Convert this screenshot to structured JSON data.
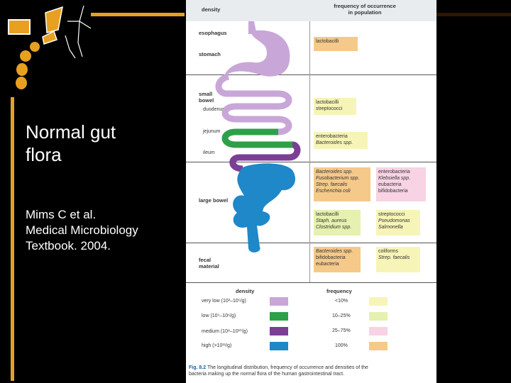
{
  "slide": {
    "title_line1": "Normal gut",
    "title_line2": "flora",
    "citation_line1": "Mims C et al.",
    "citation_line2": "Medical Microbiology",
    "citation_line3": "Textbook. 2004.",
    "accent_color": "#e8a020"
  },
  "figure": {
    "header_density": "density",
    "header_frequency_line1": "frequency of occurrence",
    "header_frequency_line2": "in population",
    "regions": {
      "esophagus": "esophagus",
      "stomach": "stomach",
      "small_bowel_line1": "small",
      "small_bowel_line2": "bowel",
      "duodenum": "duodenum",
      "jejunum": "jejunum",
      "ileum": "ileum",
      "large_bowel": "large bowel",
      "fecal_line1": "fecal",
      "fecal_line2": "material"
    },
    "boxes": {
      "stomach": [
        "lactobacilli"
      ],
      "duodenum": [
        "lactobacilli",
        "streptococci"
      ],
      "ileum": [
        "enterobacteria",
        "Bacteroides spp."
      ],
      "large_a": [
        "Bacteroides spp.",
        "Fusobacterium spp.",
        "Strep. faecalis",
        "Escherichia coli"
      ],
      "large_b": [
        "enterobacteria",
        "Klebsiella spp.",
        "eubacteria",
        "bifidobacteria"
      ],
      "large_c": [
        "lactobacilli",
        "Staph. aureus",
        "Clostridium spp."
      ],
      "large_d": [
        "streptococci",
        "Pseudomonas",
        "Salmonella"
      ],
      "fecal_a": [
        "Bacteroides spp.",
        "bifidobacteria",
        "eubacteria"
      ],
      "fecal_b": [
        "coliforms",
        "Strep. faecalis"
      ]
    },
    "legend": {
      "density_title": "density",
      "frequency_title": "frequency",
      "density_items": [
        {
          "label": "very low (10³–10⁵/g)",
          "color": "#c9a6d8"
        },
        {
          "label": "low (10⁵–10⁶/g)",
          "color": "#2ea04a"
        },
        {
          "label": "medium (10⁸–10¹⁰/g)",
          "color": "#7b3f95"
        },
        {
          "label": "high (>10¹¹/g)",
          "color": "#1e88c8"
        }
      ],
      "frequency_items": [
        {
          "label": "<10%",
          "color": "#f7f4b8"
        },
        {
          "label": "10–25%",
          "color": "#e6f0b0"
        },
        {
          "label": "25–75%",
          "color": "#f7d3e3"
        },
        {
          "label": "100%",
          "color": "#f5c98a"
        }
      ]
    },
    "caption_label": "Fig. 8.2",
    "caption_text_line1": "The longitudinal distribution, frequency of occurrence and densities of the",
    "caption_text_line2": "bacteria making up the normal flora of the human gastrointestinal tract."
  }
}
